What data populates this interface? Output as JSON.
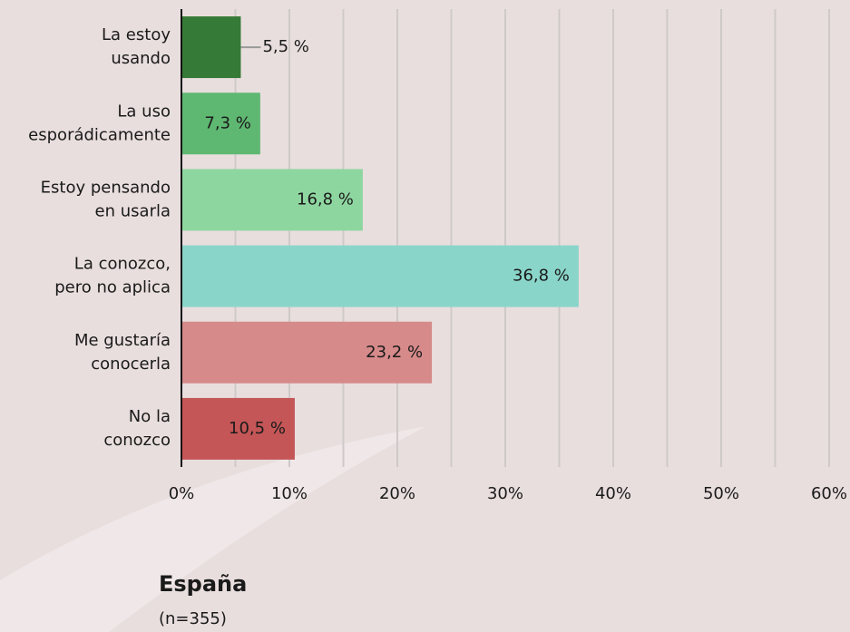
{
  "chart_data": {
    "type": "hbar",
    "categories": [
      [
        "La estoy",
        "usando"
      ],
      [
        "La uso",
        "esporádicamente"
      ],
      [
        "Estoy pensando",
        "en usarla"
      ],
      [
        "La conozco,",
        "pero no aplica"
      ],
      [
        "Me gustaría",
        "conocerla"
      ],
      [
        "No la",
        "conozco"
      ]
    ],
    "values": [
      5.5,
      7.3,
      16.8,
      36.8,
      23.2,
      10.5
    ],
    "value_labels": [
      "5,5 %",
      "7,3 %",
      "16,8 %",
      "36,8 %",
      "23,2 %",
      "10,5 %"
    ],
    "colors": [
      "#367a37",
      "#5fb872",
      "#8ed6a0",
      "#8ad5c9",
      "#d68a8a",
      "#c45657"
    ],
    "xlim": [
      0,
      60
    ],
    "xticks": [
      {
        "value": 0,
        "label": "0%"
      },
      {
        "value": 10,
        "label": "10%"
      },
      {
        "value": 20,
        "label": "20%"
      },
      {
        "value": 30,
        "label": "30%"
      },
      {
        "value": 40,
        "label": "40%"
      },
      {
        "value": 50,
        "label": "50%"
      },
      {
        "value": 60,
        "label": "60%"
      }
    ],
    "minor_xticks": [
      5,
      15,
      25,
      35,
      45,
      55
    ],
    "grid": true,
    "footer_title": "España",
    "footer_note": "(n=355)"
  }
}
